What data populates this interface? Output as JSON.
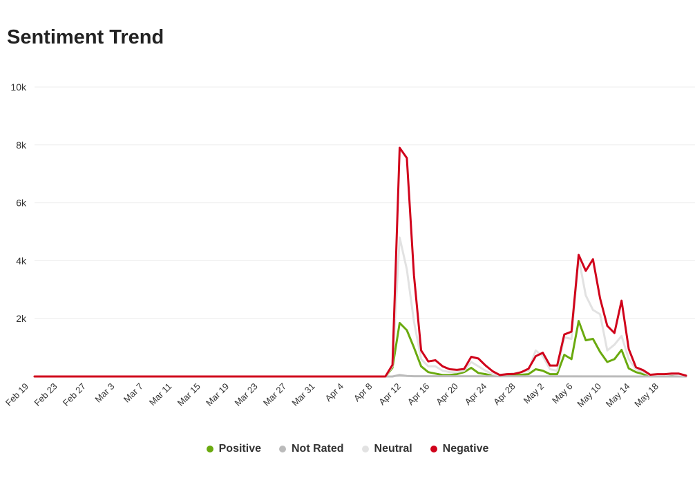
{
  "chart_data": {
    "type": "line",
    "title": "Sentiment Trend",
    "xlabel": "",
    "ylabel": "",
    "ylim": [
      0,
      10000
    ],
    "yticks": [
      {
        "value": 2000,
        "label": "2k"
      },
      {
        "value": 4000,
        "label": "4k"
      },
      {
        "value": 6000,
        "label": "6k"
      },
      {
        "value": 8000,
        "label": "8k"
      },
      {
        "value": 10000,
        "label": "10k"
      }
    ],
    "xticks": [
      "Feb 19",
      "Feb 23",
      "Feb 27",
      "Mar 3",
      "Mar 7",
      "Mar 11",
      "Mar 15",
      "Mar 19",
      "Mar 23",
      "Mar 27",
      "Mar 31",
      "Apr 4",
      "Apr 8",
      "Apr 12",
      "Apr 16",
      "Apr 20",
      "Apr 24",
      "Apr 28",
      "May 2",
      "May 6",
      "May 10",
      "May 14",
      "May 18"
    ],
    "grid": true,
    "legend_position": "bottom",
    "x_start": "2020-02-19",
    "x_end": "2020-05-20",
    "series": [
      {
        "name": "Positive",
        "color": "#6aaa0f",
        "points": [
          [
            "2020-02-19",
            0
          ],
          [
            "2020-04-08",
            0
          ],
          [
            "2020-04-09",
            300
          ],
          [
            "2020-04-10",
            1850
          ],
          [
            "2020-04-11",
            1600
          ],
          [
            "2020-04-12",
            1000
          ],
          [
            "2020-04-13",
            350
          ],
          [
            "2020-04-14",
            150
          ],
          [
            "2020-04-15",
            100
          ],
          [
            "2020-04-16",
            50
          ],
          [
            "2020-04-17",
            50
          ],
          [
            "2020-04-18",
            80
          ],
          [
            "2020-04-19",
            150
          ],
          [
            "2020-04-20",
            300
          ],
          [
            "2020-04-21",
            120
          ],
          [
            "2020-04-22",
            80
          ],
          [
            "2020-04-23",
            20
          ],
          [
            "2020-04-24",
            30
          ],
          [
            "2020-04-25",
            30
          ],
          [
            "2020-04-26",
            50
          ],
          [
            "2020-04-27",
            60
          ],
          [
            "2020-04-28",
            80
          ],
          [
            "2020-04-29",
            250
          ],
          [
            "2020-04-30",
            200
          ],
          [
            "2020-05-01",
            80
          ],
          [
            "2020-05-02",
            80
          ],
          [
            "2020-05-03",
            750
          ],
          [
            "2020-05-04",
            600
          ],
          [
            "2020-05-05",
            1920
          ],
          [
            "2020-05-06",
            1250
          ],
          [
            "2020-05-07",
            1300
          ],
          [
            "2020-05-08",
            850
          ],
          [
            "2020-05-09",
            500
          ],
          [
            "2020-05-10",
            600
          ],
          [
            "2020-05-11",
            920
          ],
          [
            "2020-05-12",
            280
          ],
          [
            "2020-05-13",
            150
          ],
          [
            "2020-05-14",
            80
          ],
          [
            "2020-05-15",
            30
          ],
          [
            "2020-05-16",
            30
          ],
          [
            "2020-05-17",
            30
          ],
          [
            "2020-05-18",
            30
          ],
          [
            "2020-05-19",
            20
          ],
          [
            "2020-05-20",
            10
          ]
        ]
      },
      {
        "name": "Not Rated",
        "color": "#bbbbbb",
        "points": [
          [
            "2020-02-19",
            0
          ],
          [
            "2020-04-09",
            0
          ],
          [
            "2020-04-10",
            50
          ],
          [
            "2020-04-11",
            20
          ],
          [
            "2020-04-12",
            10
          ],
          [
            "2020-05-20",
            0
          ]
        ]
      },
      {
        "name": "Neutral",
        "color": "#e2e2e2",
        "points": [
          [
            "2020-02-19",
            0
          ],
          [
            "2020-04-08",
            0
          ],
          [
            "2020-04-09",
            350
          ],
          [
            "2020-04-10",
            4800
          ],
          [
            "2020-04-11",
            3700
          ],
          [
            "2020-04-12",
            1900
          ],
          [
            "2020-04-13",
            600
          ],
          [
            "2020-04-14",
            350
          ],
          [
            "2020-04-15",
            350
          ],
          [
            "2020-04-16",
            200
          ],
          [
            "2020-04-17",
            150
          ],
          [
            "2020-04-18",
            150
          ],
          [
            "2020-04-19",
            200
          ],
          [
            "2020-04-20",
            500
          ],
          [
            "2020-04-21",
            350
          ],
          [
            "2020-04-22",
            200
          ],
          [
            "2020-04-23",
            80
          ],
          [
            "2020-04-24",
            60
          ],
          [
            "2020-04-25",
            80
          ],
          [
            "2020-04-26",
            100
          ],
          [
            "2020-04-27",
            150
          ],
          [
            "2020-04-28",
            200
          ],
          [
            "2020-04-29",
            900
          ],
          [
            "2020-04-30",
            700
          ],
          [
            "2020-05-01",
            250
          ],
          [
            "2020-05-02",
            200
          ],
          [
            "2020-05-03",
            1350
          ],
          [
            "2020-05-04",
            1300
          ],
          [
            "2020-05-05",
            4100
          ],
          [
            "2020-05-06",
            2800
          ],
          [
            "2020-05-07",
            2300
          ],
          [
            "2020-05-08",
            2150
          ],
          [
            "2020-05-09",
            900
          ],
          [
            "2020-05-10",
            1100
          ],
          [
            "2020-05-11",
            1400
          ],
          [
            "2020-05-12",
            600
          ],
          [
            "2020-05-13",
            250
          ],
          [
            "2020-05-14",
            150
          ],
          [
            "2020-05-15",
            50
          ],
          [
            "2020-05-16",
            60
          ],
          [
            "2020-05-17",
            60
          ],
          [
            "2020-05-18",
            80
          ],
          [
            "2020-05-19",
            60
          ],
          [
            "2020-05-20",
            30
          ]
        ]
      },
      {
        "name": "Negative",
        "color": "#d0021b",
        "points": [
          [
            "2020-02-19",
            0
          ],
          [
            "2020-04-08",
            0
          ],
          [
            "2020-04-09",
            400
          ],
          [
            "2020-04-10",
            7900
          ],
          [
            "2020-04-11",
            7550
          ],
          [
            "2020-04-12",
            3500
          ],
          [
            "2020-04-13",
            900
          ],
          [
            "2020-04-14",
            520
          ],
          [
            "2020-04-15",
            560
          ],
          [
            "2020-04-16",
            350
          ],
          [
            "2020-04-17",
            250
          ],
          [
            "2020-04-18",
            230
          ],
          [
            "2020-04-19",
            260
          ],
          [
            "2020-04-20",
            680
          ],
          [
            "2020-04-21",
            620
          ],
          [
            "2020-04-22",
            380
          ],
          [
            "2020-04-23",
            180
          ],
          [
            "2020-04-24",
            50
          ],
          [
            "2020-04-25",
            80
          ],
          [
            "2020-04-26",
            90
          ],
          [
            "2020-04-27",
            150
          ],
          [
            "2020-04-28",
            270
          ],
          [
            "2020-04-29",
            700
          ],
          [
            "2020-04-30",
            820
          ],
          [
            "2020-05-01",
            380
          ],
          [
            "2020-05-02",
            380
          ],
          [
            "2020-05-03",
            1450
          ],
          [
            "2020-05-04",
            1550
          ],
          [
            "2020-05-05",
            4200
          ],
          [
            "2020-05-06",
            3650
          ],
          [
            "2020-05-07",
            4050
          ],
          [
            "2020-05-08",
            2700
          ],
          [
            "2020-05-09",
            1750
          ],
          [
            "2020-05-10",
            1500
          ],
          [
            "2020-05-11",
            2620
          ],
          [
            "2020-05-12",
            950
          ],
          [
            "2020-05-13",
            320
          ],
          [
            "2020-05-14",
            220
          ],
          [
            "2020-05-15",
            60
          ],
          [
            "2020-05-16",
            80
          ],
          [
            "2020-05-17",
            80
          ],
          [
            "2020-05-18",
            100
          ],
          [
            "2020-05-19",
            100
          ],
          [
            "2020-05-20",
            30
          ]
        ]
      }
    ]
  }
}
